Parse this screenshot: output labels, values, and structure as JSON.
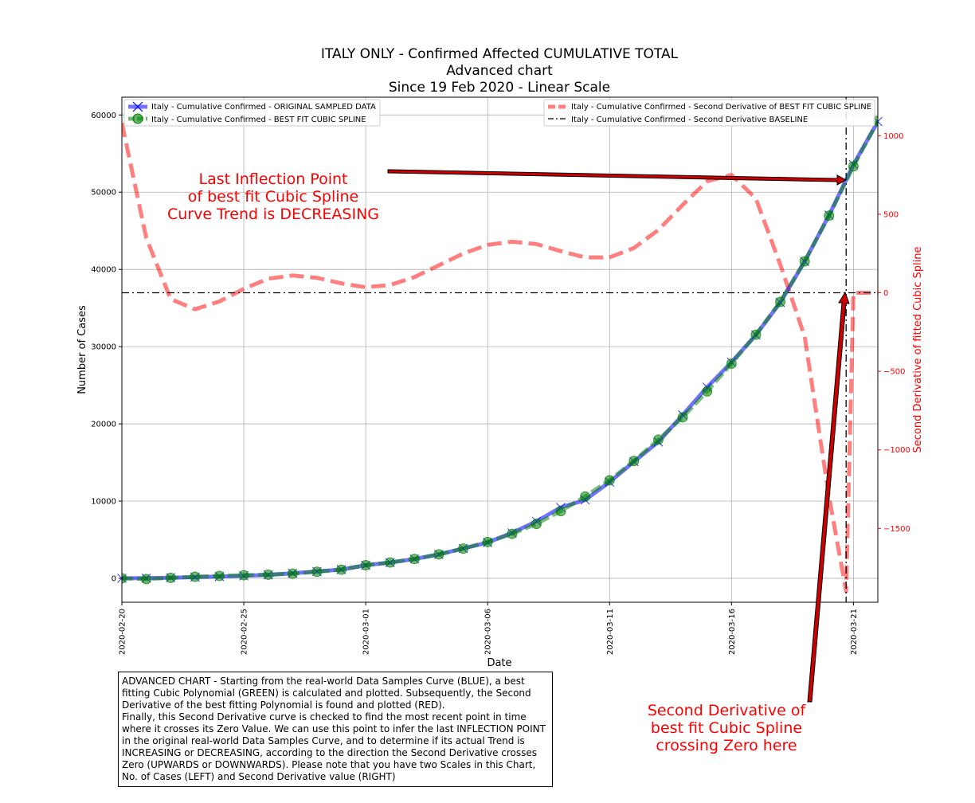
{
  "chart_data": {
    "type": "line",
    "title": [
      "ITALY ONLY - Confirmed Affected CUMULATIVE TOTAL",
      "Advanced chart",
      "Since 19 Feb 2020 - Linear Scale"
    ],
    "xlabel": "Date",
    "ylabel": "Number of Cases",
    "y2label": "Second Derivative of fitted Cubic Spline",
    "x_ticks": [
      "2020-02-20",
      "2020-02-25",
      "2020-03-01",
      "2020-03-06",
      "2020-03-11",
      "2020-03-16",
      "2020-03-21"
    ],
    "y_ticks": [
      0,
      10000,
      20000,
      30000,
      40000,
      50000,
      60000
    ],
    "y2_ticks": [
      1000,
      500,
      0,
      -500,
      -1000,
      -1500
    ],
    "y2_tick_labels": [
      "1000",
      "500",
      "0",
      "−500",
      "−1000",
      "−1500"
    ],
    "ylim": [
      -3100,
      62300
    ],
    "y2lim": [
      -1970,
      1245
    ],
    "grid": true,
    "days_x": [
      0,
      31
    ],
    "series": [
      {
        "name": "Italy - Cumulative Confirmed - ORIGINAL SAMPLED DATA",
        "axis": "left",
        "color": "#0000ff",
        "marker": "x",
        "x": [
          0,
          1,
          2,
          3,
          4,
          5,
          6,
          7,
          8,
          9,
          10,
          11,
          12,
          13,
          14,
          15,
          16,
          17,
          18,
          19,
          20,
          21,
          22,
          23,
          24,
          25,
          26,
          27,
          28,
          29,
          30,
          31
        ],
        "values": [
          3,
          20,
          79,
          150,
          227,
          320,
          445,
          650,
          888,
          1128,
          1694,
          2036,
          2502,
          3089,
          3858,
          4636,
          5883,
          7375,
          9172,
          10149,
          12462,
          15113,
          17660,
          21157,
          24747,
          27980,
          31506,
          35713,
          41035,
          47021,
          53578,
          59138
        ]
      },
      {
        "name": "Italy - Cumulative Confirmed - BEST FIT CUBIC SPLINE",
        "axis": "left",
        "color": "#008000",
        "marker": "o",
        "x": [
          0,
          1,
          2,
          3,
          4,
          5,
          6,
          7,
          8,
          9,
          10,
          11,
          12,
          13,
          14,
          15,
          16,
          17,
          18,
          19,
          20,
          21,
          22,
          23,
          24,
          25,
          26,
          27,
          28,
          29,
          30,
          31
        ],
        "values": [
          3,
          -100,
          60,
          200,
          310,
          400,
          470,
          600,
          850,
          1120,
          1700,
          2050,
          2500,
          3100,
          3850,
          4700,
          5750,
          7050,
          8700,
          10600,
          12700,
          15200,
          17950,
          20850,
          24200,
          27800,
          31550,
          35800,
          41050,
          46950,
          53350,
          59200
        ]
      },
      {
        "name": "Italy - Cumulative Confirmed - Second Derivative of BEST FIT CUBIC SPLINE",
        "axis": "right",
        "color": "#ff0000",
        "style": "dashed",
        "x": [
          0,
          1,
          2,
          3,
          4,
          5,
          6,
          7,
          8,
          9,
          10,
          11,
          12,
          13,
          14,
          15,
          16,
          17,
          18,
          19,
          20,
          21,
          22,
          23,
          24,
          25,
          26,
          27,
          28,
          29,
          29.7,
          30,
          30.5,
          31
        ],
        "values": [
          1080,
          350,
          -40,
          -105,
          -55,
          25,
          90,
          110,
          95,
          60,
          35,
          50,
          100,
          175,
          250,
          305,
          325,
          310,
          265,
          225,
          225,
          285,
          400,
          560,
          710,
          750,
          600,
          180,
          -280,
          -1300,
          -1900,
          0,
          0,
          0
        ]
      },
      {
        "name": "Italy - Cumulative Confirmed - Second Derivative BASELINE",
        "axis": "right",
        "color": "#000000",
        "style": "dashdot",
        "values": [
          0
        ]
      }
    ],
    "vline_day": 29.7,
    "annotations": [
      "Last Inflection Point",
      "of best fit Cubic Spline",
      "Curve Trend is DECREASING",
      "Second Derivative of",
      "best fit Cubic Spline",
      "crossing Zero here"
    ],
    "note": "ADVANCED CHART - Starting from the real-world Data Samples Curve (BLUE), a best fitting Cubic Polynomial (GREEN) is calculated and plotted. Subsequently, the Second Derivative of the best fitting Polynomial is found and plotted (RED).\nFinally, this Second Derivative curve is checked to find the most recent point in time where it crosses its Zero Value. We can use this point to infer the last INFLECTION POINT in the original real-world Data Samples Curve, and to determine if its actual Trend is INCREASING or DECREASING, according to the direction the Second Derivative crosses Zero (UPWARDS or DOWNWARDS). Please note that you have two Scales in this Chart, No. of Cases (LEFT) and Second Derivative value (RIGHT)"
  }
}
